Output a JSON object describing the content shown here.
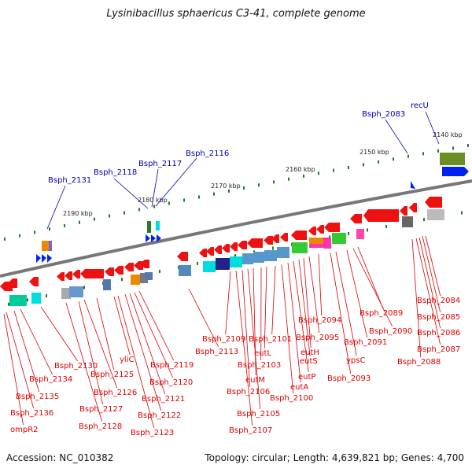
{
  "title": "Lysinibacillus sphaericus C3-41, complete genome",
  "footer": {
    "accession": "Accession: NC_010382",
    "info": "Topology: circular; Length: 4,639,821 bp; Genes: 4,700"
  },
  "colors": {
    "label_red": "#dd0000",
    "label_blue": "#0000aa",
    "backbone": "#777777",
    "gene_red": "#ee1111",
    "tick_green": "#227722"
  },
  "scale_labels": [
    "2140 kbp",
    "2150 kbp",
    "2160 kbp",
    "2170 kbp",
    "2180 kbp",
    "2190 kbp"
  ],
  "top_gene_labels": [
    "recU",
    "Bsph_2083",
    "Bsph_2116",
    "Bsph_2117",
    "Bsph_2118",
    "Bsph_2131"
  ],
  "bottom_gene_labels": [
    "Bsph_2084",
    "Bsph_2085",
    "Bsph_2086",
    "Bsph_2087",
    "Bsph_2088",
    "Bsph_2089",
    "Bsph_2090",
    "Bsph_2091",
    "ypsC",
    "Bsph_2093",
    "Bsph_2094",
    "Bsph_2095",
    "eutH",
    "eutS",
    "eutP",
    "eutA",
    "Bsph_2100",
    "Bsph_2101",
    "eutL",
    "Bsph_2103",
    "eutM",
    "Bsph_2105",
    "Bsph_2106",
    "Bsph_2107",
    "Bsph_2109",
    "Bsph_2113",
    "Bsph_2119",
    "Bsph_2120",
    "Bsph_2121",
    "Bsph_2122",
    "Bsph_2123",
    "yliC",
    "Bsph_2125",
    "Bsph_2126",
    "Bsph_2127",
    "Bsph_2128",
    "Bsph_2130",
    "Bsph_2134",
    "Bsph_2135",
    "Bsph_2136",
    "ompR2"
  ]
}
